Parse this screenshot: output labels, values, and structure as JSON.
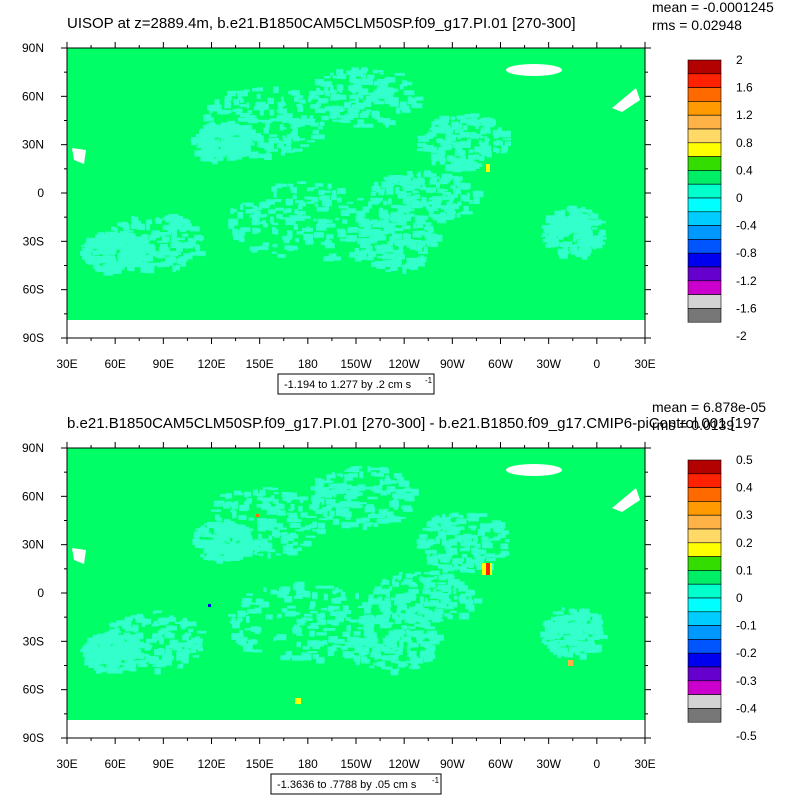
{
  "chart_data": [
    {
      "type": "heatmap",
      "title": "UISOP at z=2889.4m, b.e21.B1850CAM5CLM50SP.f09_g17.PI.01 [270-300]",
      "stats": {
        "mean": "mean = -0.0001245",
        "rms": "rms = 0.02948"
      },
      "xlabel": "",
      "ylabel": "",
      "x_ticks": [
        "30E",
        "60E",
        "90E",
        "120E",
        "150E",
        "180",
        "150W",
        "120W",
        "90W",
        "60W",
        "30W",
        "0",
        "30E"
      ],
      "y_ticks": [
        "90N",
        "60N",
        "30N",
        "0",
        "30S",
        "60S",
        "90S"
      ],
      "xlim": [
        30,
        390
      ],
      "ylim": [
        -90,
        90
      ],
      "contour_info": "-1.194 to 1.277 by .2 cm s",
      "contour_unit_exp": "-1",
      "legend": {
        "labels": [
          "2",
          "1.6",
          "1.2",
          "0.8",
          "0.4",
          "0",
          "-0.4",
          "-0.8",
          "-1.2",
          "-1.6",
          "-2"
        ],
        "colors": [
          "#b30000",
          "#ff2200",
          "#ff6a00",
          "#ff9a00",
          "#ffb347",
          "#ffd966",
          "#ffff00",
          "#33dd00",
          "#00ee66",
          "#00ffcc",
          "#00ffff",
          "#00ccff",
          "#0099ff",
          "#0055ff",
          "#0000ee",
          "#6600cc",
          "#cc00cc",
          "#d3d3d3",
          "#777777"
        ]
      },
      "mean": -0.0001245,
      "rms": 0.02948
    },
    {
      "type": "heatmap",
      "title": "b.e21.B1850CAM5CLM50SP.f09_g17.PI.01 [270-300] - b.e21.B1850.f09_g17.CMIP6-piControl.001 [197",
      "stats": {
        "mean": "mean = 6.878e-05",
        "rms": "rms = 0.0139"
      },
      "xlabel": "",
      "ylabel": "",
      "x_ticks": [
        "30E",
        "60E",
        "90E",
        "120E",
        "150E",
        "180",
        "150W",
        "120W",
        "90W",
        "60W",
        "30W",
        "0",
        "30E"
      ],
      "y_ticks": [
        "90N",
        "60N",
        "30N",
        "0",
        "30S",
        "60S",
        "90S"
      ],
      "xlim": [
        30,
        390
      ],
      "ylim": [
        -90,
        90
      ],
      "contour_info": "-1.3636 to .7788 by .05 cm s",
      "contour_unit_exp": "-1",
      "legend": {
        "labels": [
          "0.5",
          "0.4",
          "0.3",
          "0.2",
          "0.1",
          "0",
          "-0.1",
          "-0.2",
          "-0.3",
          "-0.4",
          "-0.5"
        ],
        "colors": [
          "#b30000",
          "#ff2200",
          "#ff6a00",
          "#ff9a00",
          "#ffb347",
          "#ffd966",
          "#ffff00",
          "#33dd00",
          "#00ee66",
          "#00ffcc",
          "#00ffff",
          "#00ccff",
          "#0099ff",
          "#0055ff",
          "#0000ee",
          "#6600cc",
          "#cc00cc",
          "#d3d3d3",
          "#777777"
        ]
      },
      "mean": 6.878e-05,
      "rms": 0.0139
    }
  ],
  "colors": {
    "background_field": "#00ff66",
    "ocean_pattern": "#33ffcc",
    "land_mask": "#ffffff"
  }
}
